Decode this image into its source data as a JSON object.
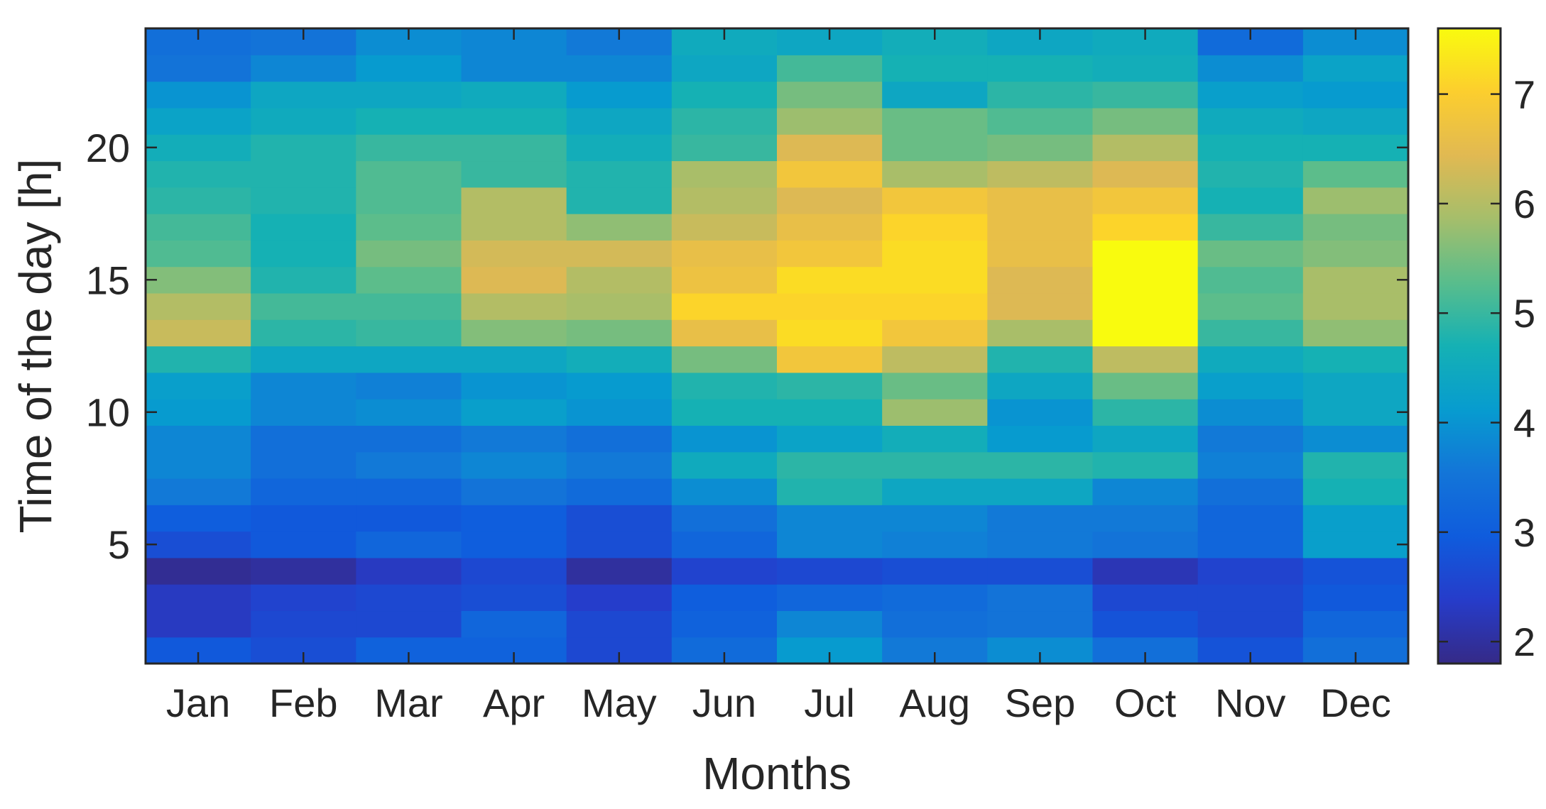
{
  "chart_data": {
    "type": "heatmap",
    "title": "",
    "xlabel": "Months",
    "ylabel": "Time of the day [h]",
    "categories": [
      "Jan",
      "Feb",
      "Mar",
      "Apr",
      "May",
      "Jun",
      "Jul",
      "Aug",
      "Sep",
      "Oct",
      "Nov",
      "Dec"
    ],
    "y_hours": [
      1,
      2,
      3,
      4,
      5,
      6,
      7,
      8,
      9,
      10,
      11,
      12,
      13,
      14,
      15,
      16,
      17,
      18,
      19,
      20,
      21,
      22,
      23,
      24
    ],
    "yticks": [
      5,
      10,
      15,
      20
    ],
    "ylim": [
      0.5,
      24.5
    ],
    "values": [
      [
        2.9,
        2.3,
        2.3,
        1.9,
        2.7,
        3.0,
        3.6,
        3.8,
        3.8,
        4.1,
        4.2,
        4.8,
        6.2,
        6.0,
        5.6,
        5.2,
        5.1,
        4.9,
        4.8,
        4.6,
        4.3,
        4.0,
        3.5,
        3.4
      ],
      [
        2.7,
        2.6,
        2.5,
        2.0,
        2.9,
        2.9,
        3.2,
        3.4,
        3.4,
        3.8,
        3.8,
        4.4,
        4.9,
        5.1,
        4.8,
        4.7,
        4.7,
        4.8,
        4.8,
        4.8,
        4.5,
        4.4,
        3.8,
        3.5
      ],
      [
        3.1,
        2.6,
        2.6,
        2.3,
        3.2,
        2.9,
        3.2,
        3.6,
        3.4,
        3.9,
        3.7,
        4.4,
        5.0,
        5.1,
        5.3,
        5.5,
        5.3,
        5.2,
        5.2,
        5.0,
        4.7,
        4.4,
        4.1,
        3.9
      ],
      [
        3.1,
        3.2,
        2.7,
        2.6,
        3.0,
        3.0,
        3.5,
        3.8,
        3.6,
        4.2,
        4.0,
        4.4,
        5.6,
        6.0,
        6.4,
        6.3,
        6.0,
        6.0,
        5.0,
        5.0,
        4.7,
        4.5,
        3.8,
        3.8
      ],
      [
        2.6,
        2.6,
        2.4,
        2.0,
        2.7,
        2.7,
        3.3,
        3.6,
        3.4,
        4.0,
        4.1,
        4.6,
        5.5,
        5.9,
        6.0,
        6.3,
        5.7,
        4.8,
        4.8,
        4.6,
        4.4,
        4.1,
        3.8,
        3.6
      ],
      [
        3.3,
        3.1,
        3.0,
        2.5,
        3.2,
        3.4,
        3.9,
        4.5,
        4.0,
        4.7,
        4.8,
        5.5,
        6.6,
        7.1,
        6.7,
        6.6,
        6.2,
        6.0,
        5.9,
        5.0,
        4.9,
        4.7,
        4.4,
        4.5
      ],
      [
        4.1,
        3.8,
        3.2,
        2.6,
        3.8,
        3.8,
        4.8,
        4.9,
        4.3,
        4.7,
        4.9,
        6.8,
        7.2,
        7.1,
        7.2,
        6.8,
        6.6,
        6.4,
        6.8,
        6.4,
        5.8,
        5.5,
        5.1,
        4.4
      ],
      [
        3.6,
        3.4,
        3.3,
        2.7,
        3.7,
        3.8,
        4.4,
        4.9,
        4.6,
        5.8,
        5.4,
        6.1,
        6.8,
        7.1,
        7.2,
        7.2,
        7.1,
        6.8,
        5.9,
        5.4,
        5.4,
        4.4,
        4.7,
        4.6
      ],
      [
        3.9,
        3.5,
        3.5,
        2.7,
        3.6,
        3.6,
        4.4,
        4.9,
        4.1,
        4.0,
        4.4,
        4.8,
        5.9,
        6.4,
        6.4,
        6.6,
        6.6,
        6.6,
        6.1,
        5.5,
        5.2,
        4.9,
        4.7,
        4.4
      ],
      [
        3.4,
        2.8,
        2.6,
        2.2,
        3.5,
        3.6,
        3.8,
        4.8,
        4.4,
        4.9,
        5.4,
        6.1,
        7.6,
        7.6,
        7.6,
        7.6,
        7.1,
        6.8,
        6.4,
        6.0,
        5.5,
        5.0,
        4.6,
        4.5
      ],
      [
        2.8,
        2.6,
        2.6,
        2.5,
        3.2,
        3.2,
        3.4,
        3.7,
        3.6,
        3.9,
        4.2,
        4.5,
        5.0,
        5.3,
        5.2,
        5.4,
        5.0,
        4.7,
        4.8,
        4.7,
        4.5,
        4.2,
        3.9,
        3.3
      ],
      [
        3.4,
        3.2,
        2.9,
        2.8,
        4.2,
        4.2,
        4.7,
        4.8,
        3.9,
        4.4,
        4.4,
        4.7,
        5.7,
        5.9,
        5.9,
        5.6,
        5.5,
        5.8,
        5.3,
        4.7,
        4.4,
        4.1,
        4.3,
        3.9
      ]
    ],
    "colorbar": {
      "min": 1.8,
      "max": 7.6,
      "ticks": [
        2,
        3,
        4,
        5,
        6,
        7
      ]
    },
    "grid": false,
    "colormap": "parula"
  }
}
